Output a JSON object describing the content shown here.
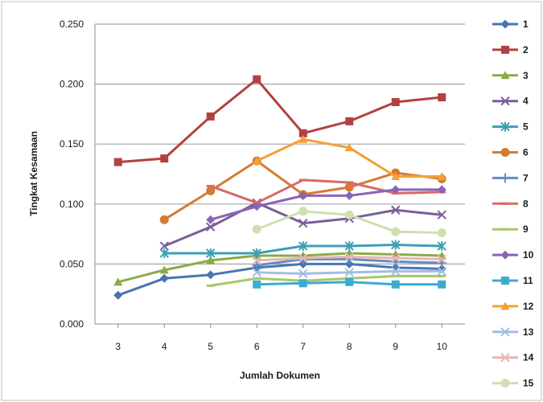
{
  "chart_data": {
    "type": "line",
    "xlabel": "Jumlah Dokumen",
    "ylabel": "Tingkat Kesamaan",
    "x": [
      3,
      4,
      5,
      6,
      7,
      8,
      9,
      10
    ],
    "xlim": [
      2.5,
      10.5
    ],
    "ylim": [
      0,
      0.25
    ],
    "yticks": [
      "0.000",
      "0.050",
      "0.100",
      "0.150",
      "0.200",
      "0.250"
    ],
    "grid": true,
    "legend_position": "right",
    "series": [
      {
        "name": "1",
        "color": "#4a74b0",
        "marker": "diamond",
        "values": [
          0.024,
          0.038,
          0.041,
          0.047,
          0.05,
          0.05,
          0.047,
          0.046
        ]
      },
      {
        "name": "2",
        "color": "#b14240",
        "marker": "square",
        "values": [
          0.135,
          0.138,
          0.173,
          0.204,
          0.159,
          0.169,
          0.185,
          0.189
        ]
      },
      {
        "name": "3",
        "color": "#8aab45",
        "marker": "triangle",
        "values": [
          0.035,
          0.045,
          0.053,
          0.057,
          0.057,
          0.059,
          0.058,
          0.057
        ]
      },
      {
        "name": "4",
        "color": "#7a5e9a",
        "marker": "x",
        "values": [
          null,
          0.065,
          0.081,
          0.101,
          0.084,
          0.088,
          0.095,
          0.091
        ]
      },
      {
        "name": "5",
        "color": "#3d9fb5",
        "marker": "star",
        "values": [
          null,
          0.059,
          0.059,
          0.059,
          0.065,
          0.065,
          0.066,
          0.065
        ]
      },
      {
        "name": "6",
        "color": "#d47b33",
        "marker": "circle",
        "values": [
          null,
          0.087,
          0.111,
          0.136,
          0.108,
          0.114,
          0.126,
          0.121
        ]
      },
      {
        "name": "7",
        "color": "#5e8ec7",
        "marker": "plus",
        "values": [
          null,
          null,
          null,
          0.049,
          0.054,
          0.054,
          0.052,
          0.051
        ]
      },
      {
        "name": "8",
        "color": "#d86a67",
        "marker": "dash",
        "values": [
          null,
          null,
          0.115,
          0.101,
          0.12,
          0.118,
          0.109,
          0.11
        ]
      },
      {
        "name": "9",
        "color": "#a6c86a",
        "marker": "dash",
        "values": [
          null,
          null,
          0.032,
          0.038,
          0.036,
          0.038,
          0.04,
          0.04
        ]
      },
      {
        "name": "10",
        "color": "#8b63b6",
        "marker": "diamond",
        "values": [
          null,
          null,
          0.087,
          0.098,
          0.107,
          0.107,
          0.112,
          0.112
        ]
      },
      {
        "name": "11",
        "color": "#3cabd0",
        "marker": "square",
        "values": [
          null,
          null,
          null,
          0.033,
          0.034,
          0.035,
          0.033,
          0.033
        ]
      },
      {
        "name": "12",
        "color": "#f3a037",
        "marker": "triangle",
        "values": [
          null,
          null,
          null,
          0.136,
          0.154,
          0.147,
          0.123,
          0.123
        ]
      },
      {
        "name": "13",
        "color": "#a4bde3",
        "marker": "x",
        "values": [
          null,
          null,
          null,
          0.043,
          0.042,
          0.043,
          0.044,
          0.044
        ]
      },
      {
        "name": "14",
        "color": "#e8b4b2",
        "marker": "x",
        "values": [
          null,
          null,
          null,
          0.053,
          0.055,
          0.056,
          0.055,
          0.054
        ]
      },
      {
        "name": "15",
        "color": "#cfdfb0",
        "marker": "circle",
        "values": [
          null,
          null,
          null,
          0.079,
          0.094,
          0.091,
          0.077,
          0.076
        ]
      }
    ]
  }
}
